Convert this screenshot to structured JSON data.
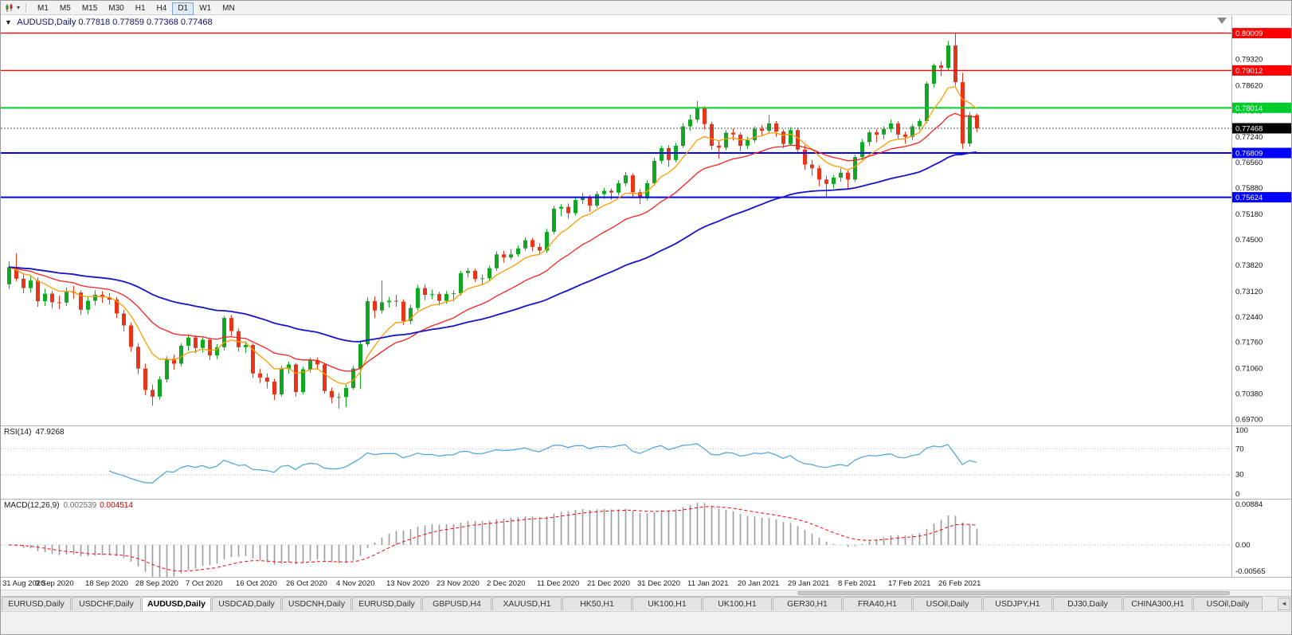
{
  "window": {
    "symbol_title": "AUDUSD,Daily",
    "ohlc_text": "0.77818 0.77859 0.77368 0.77468"
  },
  "icons": {
    "one_click": "▼",
    "caret": "▾",
    "tab_scroll": "◄"
  },
  "toolbar": {
    "timeframes": [
      "M1",
      "M5",
      "M15",
      "M30",
      "H1",
      "H4",
      "D1",
      "W1",
      "MN"
    ],
    "active_timeframe": "D1"
  },
  "chart_data": {
    "type": "candlestick",
    "symbol": "AUDUSD",
    "timeframe": "Daily",
    "title": "AUDUSD,Daily 0.77818 0.77859 0.77368 0.77468",
    "price_range": {
      "top": 0.8049,
      "bottom": 0.6953
    },
    "x_label_every": 7,
    "x_labels": [
      "31 Aug 2020",
      "9 Sep 2020",
      "18 Sep 2020",
      "28 Sep 2020",
      "7 Oct 2020",
      "16 Oct 2020",
      "26 Oct 2020",
      "4 Nov 2020",
      "13 Nov 2020",
      "23 Nov 2020",
      "2 Dec 2020",
      "11 Dec 2020",
      "21 Dec 2020",
      "31 Dec 2020",
      "11 Jan 2021",
      "20 Jan 2021",
      "29 Jan 2021",
      "8 Feb 2021",
      "17 Feb 2021",
      "26 Feb 2021"
    ],
    "y_axis_labels": [
      "0.79320",
      "0.78620",
      "0.77940",
      "0.77240",
      "0.76560",
      "0.75880",
      "0.75180",
      "0.74500",
      "0.73820",
      "0.73120",
      "0.72440",
      "0.71760",
      "0.71060",
      "0.70380",
      "0.69700"
    ],
    "colors": {
      "up": "#12a722",
      "down": "#e83418"
    },
    "h_lines": [
      {
        "value": 0.80009,
        "label": "0.80009",
        "color": "#ff0000",
        "width": 1.4
      },
      {
        "value": 0.79012,
        "label": "0.79012",
        "color": "#ff0000",
        "width": 1.4
      },
      {
        "value": 0.78014,
        "label": "0.78014",
        "color": "#00cc2c",
        "width": 2
      },
      {
        "value": 0.76809,
        "label": "0.76809",
        "color": "#0000ff",
        "width": 2
      },
      {
        "value": 0.75624,
        "label": "0.75624",
        "color": "#0000ff",
        "width": 2
      }
    ],
    "current_price": {
      "value": 0.77468,
      "label": "0.77468",
      "badge_color": "#000000"
    },
    "moving_averages": [
      {
        "name": "ma-fast",
        "period": 8,
        "color": "#ff9c00",
        "width": 1.3
      },
      {
        "name": "ma-mid",
        "period": 20,
        "color": "#ff1f1f",
        "width": 1.3
      },
      {
        "name": "ma-slow",
        "period": 55,
        "color": "#1414cc",
        "width": 1.8
      }
    ],
    "indicators": {
      "rsi": {
        "label": "RSI(14)",
        "value": "47.9268",
        "period": 14,
        "levels": [
          100,
          70,
          30,
          0
        ],
        "line_color": "#4aa3dc"
      },
      "macd": {
        "label": "MACD(12,26,9)",
        "value_main": "0.002539",
        "value_signal": "0.004514",
        "fast": 12,
        "slow": 26,
        "signal_period": 9,
        "axis_max": "0.00884",
        "axis_zero": "0.00",
        "axis_min": "-0.00565",
        "hist_color": "#9b9b9b",
        "signal_color": "#ff0000"
      }
    },
    "candles": [
      [
        0.733,
        0.7392,
        0.7318,
        0.7376
      ],
      [
        0.7376,
        0.7413,
        0.7338,
        0.7345
      ],
      [
        0.7345,
        0.7358,
        0.7306,
        0.732
      ],
      [
        0.732,
        0.7352,
        0.7308,
        0.734
      ],
      [
        0.734,
        0.7348,
        0.727,
        0.7285
      ],
      [
        0.7285,
        0.7318,
        0.7272,
        0.7305
      ],
      [
        0.7305,
        0.7312,
        0.7266,
        0.7282
      ],
      [
        0.7282,
        0.73,
        0.7264,
        0.7281
      ],
      [
        0.7281,
        0.7322,
        0.7272,
        0.731
      ],
      [
        0.731,
        0.7326,
        0.7292,
        0.7308
      ],
      [
        0.7308,
        0.7314,
        0.7248,
        0.7262
      ],
      [
        0.7262,
        0.7296,
        0.725,
        0.7286
      ],
      [
        0.7286,
        0.7314,
        0.7274,
        0.7302
      ],
      [
        0.7302,
        0.7312,
        0.728,
        0.7295
      ],
      [
        0.7295,
        0.7306,
        0.7276,
        0.7289
      ],
      [
        0.7289,
        0.7296,
        0.724,
        0.7252
      ],
      [
        0.7252,
        0.7262,
        0.7204,
        0.722
      ],
      [
        0.722,
        0.7228,
        0.715,
        0.7163
      ],
      [
        0.7163,
        0.7172,
        0.709,
        0.7105
      ],
      [
        0.7105,
        0.7118,
        0.7034,
        0.7048
      ],
      [
        0.7048,
        0.7062,
        0.7006,
        0.703
      ],
      [
        0.703,
        0.7084,
        0.7022,
        0.7076
      ],
      [
        0.7076,
        0.7138,
        0.7068,
        0.7131
      ],
      [
        0.7131,
        0.7142,
        0.7102,
        0.7118
      ],
      [
        0.7118,
        0.7172,
        0.711,
        0.7166
      ],
      [
        0.7166,
        0.7196,
        0.7152,
        0.7188
      ],
      [
        0.7188,
        0.7194,
        0.7146,
        0.716
      ],
      [
        0.716,
        0.719,
        0.7148,
        0.7182
      ],
      [
        0.7182,
        0.7188,
        0.7128,
        0.714
      ],
      [
        0.714,
        0.717,
        0.713,
        0.7162
      ],
      [
        0.7162,
        0.7246,
        0.7154,
        0.724
      ],
      [
        0.724,
        0.7248,
        0.7192,
        0.7205
      ],
      [
        0.7205,
        0.7212,
        0.715,
        0.7162
      ],
      [
        0.7162,
        0.7178,
        0.7146,
        0.7168
      ],
      [
        0.7168,
        0.7172,
        0.708,
        0.7092
      ],
      [
        0.7092,
        0.7104,
        0.7066,
        0.7081
      ],
      [
        0.7081,
        0.7092,
        0.7052,
        0.707
      ],
      [
        0.707,
        0.7078,
        0.7021,
        0.7036
      ],
      [
        0.7036,
        0.7112,
        0.703,
        0.7104
      ],
      [
        0.7104,
        0.7124,
        0.7092,
        0.7116
      ],
      [
        0.7116,
        0.712,
        0.703,
        0.7042
      ],
      [
        0.7042,
        0.711,
        0.7036,
        0.7103
      ],
      [
        0.7103,
        0.7134,
        0.7094,
        0.7127
      ],
      [
        0.7127,
        0.7134,
        0.7102,
        0.7116
      ],
      [
        0.7116,
        0.712,
        0.7038,
        0.7045
      ],
      [
        0.7045,
        0.7054,
        0.7012,
        0.7028
      ],
      [
        0.7028,
        0.704,
        0.6998,
        0.7029
      ],
      [
        0.7029,
        0.7062,
        0.7002,
        0.7053
      ],
      [
        0.7053,
        0.7112,
        0.7048,
        0.7105
      ],
      [
        0.7105,
        0.718,
        0.705,
        0.717
      ],
      [
        0.717,
        0.7295,
        0.7164,
        0.7285
      ],
      [
        0.7285,
        0.7298,
        0.724,
        0.726
      ],
      [
        0.726,
        0.734,
        0.7252,
        0.7282
      ],
      [
        0.7282,
        0.7296,
        0.7268,
        0.7286
      ],
      [
        0.7286,
        0.7302,
        0.727,
        0.7284
      ],
      [
        0.7284,
        0.729,
        0.7222,
        0.7232
      ],
      [
        0.7232,
        0.7276,
        0.7224,
        0.7267
      ],
      [
        0.7267,
        0.7328,
        0.726,
        0.732
      ],
      [
        0.732,
        0.733,
        0.7288,
        0.7302
      ],
      [
        0.7302,
        0.7316,
        0.729,
        0.7304
      ],
      [
        0.7304,
        0.731,
        0.7274,
        0.7286
      ],
      [
        0.7286,
        0.7312,
        0.7278,
        0.7304
      ],
      [
        0.7304,
        0.7314,
        0.7284,
        0.7306
      ],
      [
        0.7306,
        0.7366,
        0.73,
        0.736
      ],
      [
        0.736,
        0.7374,
        0.7348,
        0.7366
      ],
      [
        0.7366,
        0.7372,
        0.7336,
        0.7344
      ],
      [
        0.7344,
        0.7356,
        0.733,
        0.7346
      ],
      [
        0.7346,
        0.738,
        0.734,
        0.7373
      ],
      [
        0.7373,
        0.7418,
        0.7366,
        0.741
      ],
      [
        0.741,
        0.742,
        0.7388,
        0.7402
      ],
      [
        0.7402,
        0.7424,
        0.7396,
        0.741
      ],
      [
        0.741,
        0.7434,
        0.7404,
        0.7426
      ],
      [
        0.7426,
        0.7456,
        0.742,
        0.7448
      ],
      [
        0.7448,
        0.7454,
        0.7418,
        0.743
      ],
      [
        0.743,
        0.744,
        0.7408,
        0.742
      ],
      [
        0.742,
        0.7478,
        0.7414,
        0.747
      ],
      [
        0.747,
        0.754,
        0.7464,
        0.7532
      ],
      [
        0.7532,
        0.7544,
        0.7512,
        0.7537
      ],
      [
        0.7537,
        0.7546,
        0.7506,
        0.752
      ],
      [
        0.752,
        0.7562,
        0.7514,
        0.7555
      ],
      [
        0.7555,
        0.7574,
        0.7544,
        0.7562
      ],
      [
        0.7562,
        0.7568,
        0.7524,
        0.754
      ],
      [
        0.754,
        0.7578,
        0.7534,
        0.7571
      ],
      [
        0.7571,
        0.7588,
        0.7558,
        0.758
      ],
      [
        0.758,
        0.7586,
        0.7556,
        0.7575
      ],
      [
        0.7575,
        0.7608,
        0.7568,
        0.76
      ],
      [
        0.76,
        0.763,
        0.7592,
        0.7621
      ],
      [
        0.7621,
        0.7626,
        0.756,
        0.7576
      ],
      [
        0.7576,
        0.7584,
        0.7544,
        0.756
      ],
      [
        0.756,
        0.7608,
        0.7554,
        0.76
      ],
      [
        0.76,
        0.7668,
        0.7594,
        0.766
      ],
      [
        0.766,
        0.77,
        0.7652,
        0.7694
      ],
      [
        0.7694,
        0.7702,
        0.7644,
        0.7662
      ],
      [
        0.7662,
        0.7708,
        0.7656,
        0.77
      ],
      [
        0.77,
        0.776,
        0.7694,
        0.7752
      ],
      [
        0.7752,
        0.7784,
        0.774,
        0.777
      ],
      [
        0.777,
        0.782,
        0.7762,
        0.78
      ],
      [
        0.78,
        0.7806,
        0.7744,
        0.7758
      ],
      [
        0.7758,
        0.7764,
        0.769,
        0.77
      ],
      [
        0.77,
        0.7712,
        0.7666,
        0.7695
      ],
      [
        0.7695,
        0.7742,
        0.7688,
        0.7735
      ],
      [
        0.7735,
        0.7746,
        0.7714,
        0.773
      ],
      [
        0.773,
        0.7736,
        0.7686,
        0.77
      ],
      [
        0.77,
        0.7724,
        0.7692,
        0.7715
      ],
      [
        0.7715,
        0.7752,
        0.7708,
        0.7745
      ],
      [
        0.7745,
        0.7756,
        0.7726,
        0.774
      ],
      [
        0.774,
        0.7782,
        0.7734,
        0.776
      ],
      [
        0.776,
        0.7766,
        0.7724,
        0.7738
      ],
      [
        0.7738,
        0.7744,
        0.7694,
        0.7705
      ],
      [
        0.7705,
        0.775,
        0.77,
        0.7742
      ],
      [
        0.7742,
        0.7748,
        0.768,
        0.769
      ],
      [
        0.769,
        0.7702,
        0.7636,
        0.765
      ],
      [
        0.765,
        0.7662,
        0.762,
        0.764
      ],
      [
        0.764,
        0.7648,
        0.7592,
        0.761
      ],
      [
        0.761,
        0.762,
        0.7564,
        0.7598
      ],
      [
        0.7598,
        0.7622,
        0.7586,
        0.7615
      ],
      [
        0.7615,
        0.764,
        0.7604,
        0.7628
      ],
      [
        0.7628,
        0.7634,
        0.7586,
        0.761
      ],
      [
        0.761,
        0.7676,
        0.7604,
        0.767
      ],
      [
        0.767,
        0.7718,
        0.7662,
        0.771
      ],
      [
        0.771,
        0.7742,
        0.77,
        0.7736
      ],
      [
        0.7736,
        0.7744,
        0.771,
        0.773
      ],
      [
        0.773,
        0.7752,
        0.7718,
        0.7745
      ],
      [
        0.7745,
        0.777,
        0.7736,
        0.776
      ],
      [
        0.776,
        0.7766,
        0.7718,
        0.773
      ],
      [
        0.773,
        0.7738,
        0.7706,
        0.7724
      ],
      [
        0.7724,
        0.7758,
        0.7716,
        0.7752
      ],
      [
        0.7752,
        0.7772,
        0.7742,
        0.7766
      ],
      [
        0.7766,
        0.7872,
        0.776,
        0.7866
      ],
      [
        0.7866,
        0.792,
        0.7856,
        0.7915
      ],
      [
        0.7915,
        0.7926,
        0.7886,
        0.7908
      ],
      [
        0.7908,
        0.798,
        0.79,
        0.7968
      ],
      [
        0.7968,
        0.80009,
        0.786,
        0.787
      ],
      [
        0.787,
        0.7895,
        0.7692,
        0.7706
      ],
      [
        0.7706,
        0.779,
        0.7698,
        0.77818
      ],
      [
        0.77818,
        0.77859,
        0.77368,
        0.77468
      ]
    ]
  },
  "tabs": {
    "items": [
      "EURUSD,Daily",
      "USDCHF,Daily",
      "AUDUSD,Daily",
      "USDCAD,Daily",
      "USDCNH,Daily",
      "EURUSD,Daily",
      "GBPUSD,H4",
      "XAUUSD,H1",
      "HK50,H1",
      "UK100,H1",
      "UK100,H1",
      "GER30,H1",
      "FRA40,H1",
      "USOil,Daily",
      "USDJPY,H1",
      "DJ30,Daily",
      "CHINA300,H1",
      "USOil,Daily"
    ],
    "active_index": 2
  }
}
